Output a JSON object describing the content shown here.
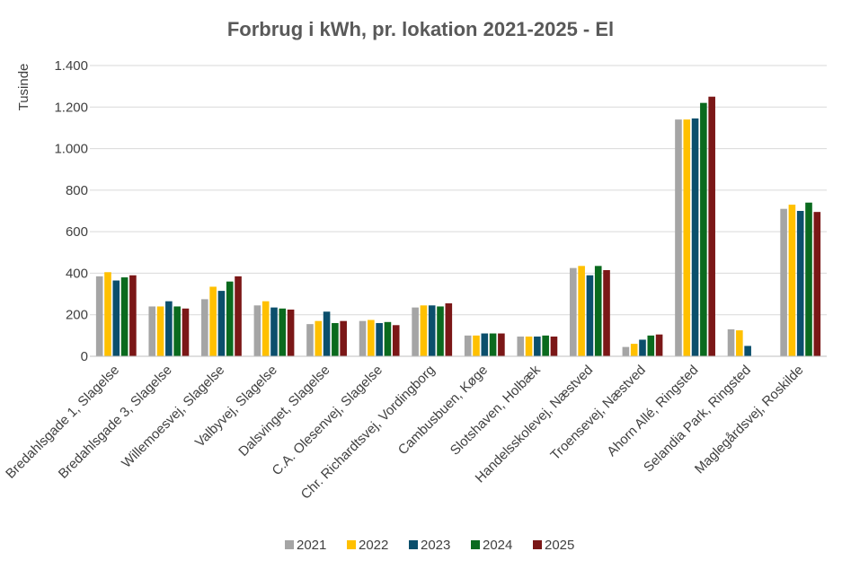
{
  "chart_data": {
    "type": "bar",
    "title": "Forbrug i kWh, pr. lokation 2021-2025 - El",
    "ylabel": "Tusinde",
    "xlabel": "",
    "ylim": [
      0,
      1400
    ],
    "yticks": [
      0,
      200,
      400,
      600,
      800,
      1000,
      1200,
      1400
    ],
    "ytick_labels": [
      "0",
      "200",
      "400",
      "600",
      "800",
      "1.000",
      "1.200",
      "1.400"
    ],
    "grid": true,
    "legend_position": "bottom",
    "categories": [
      "Bredahlsgade 1, Slagelse",
      "Bredahlsgade 3, Slagelse",
      "Willemoesvej, Slagelse",
      "Valbyvej, Slagelse",
      "Dalsvinget, Slagelse",
      "C.A. Olesenvej, Slagelse",
      "Chr. Richardtsvej, Vordingborg",
      "Cambusbuen, Køge",
      "Slotshaven, Holbæk",
      "Handelsskolevej, Næstved",
      "Troensevej, Næstved",
      "Ahorn Allé, Ringsted",
      "Selandia Park, Ringsted",
      "Maglegårdsvej, Roskilde"
    ],
    "series": [
      {
        "name": "2021",
        "color": "#a5a5a5",
        "values": [
          385,
          240,
          275,
          245,
          155,
          170,
          235,
          100,
          95,
          425,
          45,
          1140,
          130,
          710
        ]
      },
      {
        "name": "2022",
        "color": "#ffc000",
        "values": [
          405,
          240,
          335,
          265,
          170,
          175,
          245,
          100,
          95,
          435,
          60,
          1140,
          125,
          730
        ]
      },
      {
        "name": "2023",
        "color": "#0b4f6c",
        "values": [
          365,
          265,
          315,
          235,
          215,
          160,
          245,
          110,
          95,
          390,
          80,
          1145,
          50,
          700
        ]
      },
      {
        "name": "2024",
        "color": "#0a6a1e",
        "values": [
          380,
          240,
          360,
          230,
          160,
          165,
          240,
          110,
          100,
          435,
          100,
          1220,
          0,
          740
        ]
      },
      {
        "name": "2025",
        "color": "#7b1717",
        "values": [
          390,
          230,
          385,
          225,
          170,
          150,
          255,
          110,
          95,
          415,
          105,
          1250,
          0,
          695
        ]
      }
    ]
  }
}
